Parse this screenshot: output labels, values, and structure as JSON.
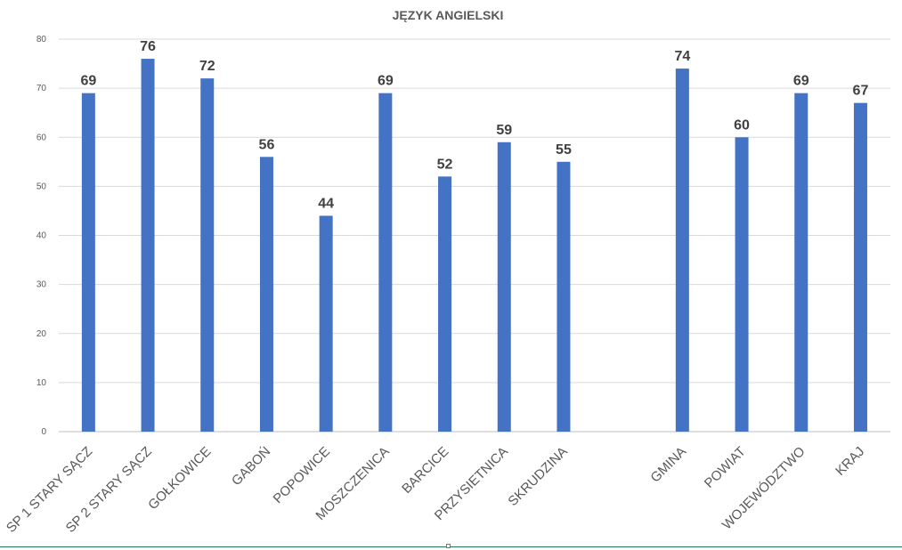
{
  "chart_data": {
    "type": "bar",
    "title": "JĘZYK ANGIELSKI",
    "categories": [
      "SP 1 STARY SĄCZ",
      "SP 2 STARY SĄCZ",
      "GOŁKOWICE",
      "GABOŃ",
      "POPOWICE",
      "MOSZCZENICA",
      "BARCICE",
      "PRZYSIETNICA",
      "SKRUDZINA",
      "",
      "GMINA",
      "POWIAT",
      "WOJEWÓDZTWO",
      "KRAJ"
    ],
    "values": [
      69,
      76,
      72,
      56,
      44,
      69,
      52,
      59,
      55,
      null,
      74,
      60,
      69,
      67
    ],
    "ylim": [
      0,
      80
    ],
    "yticks": [
      0,
      10,
      20,
      30,
      40,
      50,
      60,
      70,
      80
    ],
    "grid": true,
    "bar_color": "#4472c4",
    "gridline_color": "#d9d9d9",
    "data_labels": true
  }
}
